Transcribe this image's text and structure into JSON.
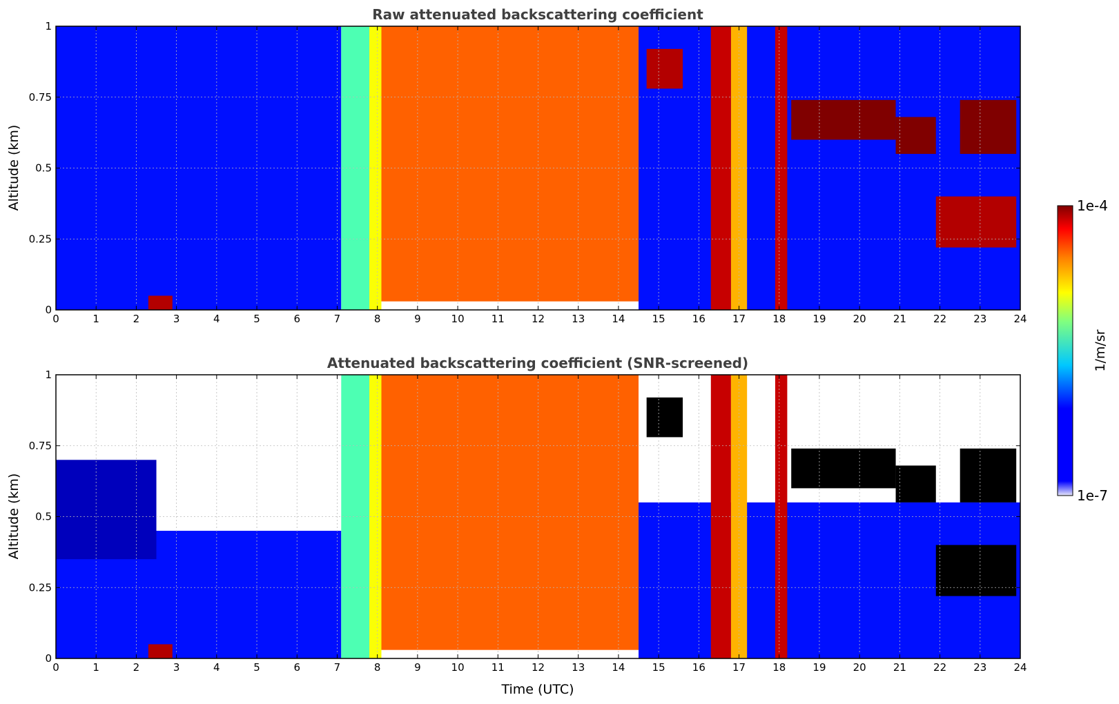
{
  "colors": {
    "jet": [
      "#00008f",
      "#0000ff",
      "#0080ff",
      "#00ffff",
      "#80ff80",
      "#ffff00",
      "#ff8000",
      "#ff0000",
      "#800000"
    ],
    "screened_max": "#000000",
    "colorbar_low": "#e8e8f8",
    "title": "#404040"
  },
  "chart_data": [
    {
      "type": "heatmap",
      "title": "Raw attenuated backscattering coefficient",
      "xlabel": "",
      "ylabel": "Altitude (km)",
      "xlim": [
        0,
        24
      ],
      "ylim": [
        0,
        1
      ],
      "xticks": [
        "0",
        "1",
        "2",
        "3",
        "4",
        "5",
        "6",
        "7",
        "8",
        "9",
        "10",
        "11",
        "12",
        "13",
        "14",
        "15",
        "16",
        "17",
        "18",
        "19",
        "20",
        "21",
        "22",
        "23",
        "24"
      ],
      "yticks": [
        "0",
        "0.25",
        "0.5",
        "0.75",
        "1"
      ],
      "grid": true,
      "layers": [
        {
          "x": [
            0,
            7.1
          ],
          "y": [
            0,
            1
          ],
          "level": 0.14
        },
        {
          "x": [
            7.1,
            7.8
          ],
          "y": [
            0,
            1
          ],
          "level": 0.45
        },
        {
          "x": [
            7.8,
            8.1
          ],
          "y": [
            0,
            1
          ],
          "level": 0.62
        },
        {
          "x": [
            8.1,
            14.5
          ],
          "y": [
            0.03,
            1
          ],
          "level": 0.78
        },
        {
          "x": [
            14.5,
            24
          ],
          "y": [
            0,
            1
          ],
          "level": 0.14
        },
        {
          "x": [
            16.3,
            16.8
          ],
          "y": [
            0,
            1
          ],
          "level": 0.93
        },
        {
          "x": [
            16.8,
            17.2
          ],
          "y": [
            0,
            1
          ],
          "level": 0.7
        },
        {
          "x": [
            17.9,
            18.2
          ],
          "y": [
            0,
            1
          ],
          "level": 0.93
        },
        {
          "x": [
            18.3,
            20.9
          ],
          "y": [
            0.6,
            0.74
          ],
          "level": 1.0
        },
        {
          "x": [
            20.9,
            21.9
          ],
          "y": [
            0.55,
            0.68
          ],
          "level": 1.0
        },
        {
          "x": [
            21.9,
            23.9
          ],
          "y": [
            0.22,
            0.4
          ],
          "level": 0.95
        },
        {
          "x": [
            22.5,
            23.9
          ],
          "y": [
            0.55,
            0.74
          ],
          "level": 1.0
        },
        {
          "x": [
            14.7,
            15.6
          ],
          "y": [
            0.78,
            0.92
          ],
          "level": 0.95
        },
        {
          "x": [
            2.3,
            2.9
          ],
          "y": [
            0,
            0.05
          ],
          "level": 0.95
        }
      ]
    },
    {
      "type": "heatmap",
      "title": "Attenuated backscattering coefficient (SNR-screened)",
      "xlabel": "Time (UTC)",
      "ylabel": "Altitude (km)",
      "xlim": [
        0,
        24
      ],
      "ylim": [
        0,
        1
      ],
      "xticks": [
        "0",
        "1",
        "2",
        "3",
        "4",
        "5",
        "6",
        "7",
        "8",
        "9",
        "10",
        "11",
        "12",
        "13",
        "14",
        "15",
        "16",
        "17",
        "18",
        "19",
        "20",
        "21",
        "22",
        "23",
        "24"
      ],
      "yticks": [
        "0",
        "0.25",
        "0.5",
        "0.75",
        "1"
      ],
      "grid": true,
      "layers": [
        {
          "x": [
            0,
            7.1
          ],
          "y": [
            0,
            0.45
          ],
          "level": 0.14
        },
        {
          "x": [
            0,
            2.5
          ],
          "y": [
            0.35,
            0.7
          ],
          "level": 0.05
        },
        {
          "x": [
            7.1,
            7.8
          ],
          "y": [
            0,
            1
          ],
          "level": 0.45
        },
        {
          "x": [
            7.8,
            8.1
          ],
          "y": [
            0,
            1
          ],
          "level": 0.62
        },
        {
          "x": [
            8.1,
            14.5
          ],
          "y": [
            0.03,
            1
          ],
          "level": 0.78
        },
        {
          "x": [
            14.5,
            24
          ],
          "y": [
            0,
            0.55
          ],
          "level": 0.14
        },
        {
          "x": [
            16.3,
            16.8
          ],
          "y": [
            0,
            1
          ],
          "level": 0.93
        },
        {
          "x": [
            16.8,
            17.2
          ],
          "y": [
            0,
            1
          ],
          "level": 0.7
        },
        {
          "x": [
            17.9,
            18.2
          ],
          "y": [
            0,
            1
          ],
          "level": 0.93
        },
        {
          "x": [
            18.3,
            20.9
          ],
          "y": [
            0.6,
            0.74
          ],
          "level": 1.1
        },
        {
          "x": [
            20.9,
            21.9
          ],
          "y": [
            0.55,
            0.68
          ],
          "level": 1.1
        },
        {
          "x": [
            21.9,
            23.9
          ],
          "y": [
            0.22,
            0.4
          ],
          "level": 1.1
        },
        {
          "x": [
            22.5,
            23.9
          ],
          "y": [
            0.55,
            0.74
          ],
          "level": 1.1
        },
        {
          "x": [
            14.7,
            15.6
          ],
          "y": [
            0.78,
            0.92
          ],
          "level": 1.1
        },
        {
          "x": [
            2.3,
            2.9
          ],
          "y": [
            0,
            0.05
          ],
          "level": 0.95
        }
      ]
    }
  ],
  "colorbar": {
    "label": "1/m/sr",
    "max_label": "1e-4",
    "min_label": "1e-7",
    "range": [
      "1e-7",
      "1e-4"
    ],
    "scale": "log"
  }
}
